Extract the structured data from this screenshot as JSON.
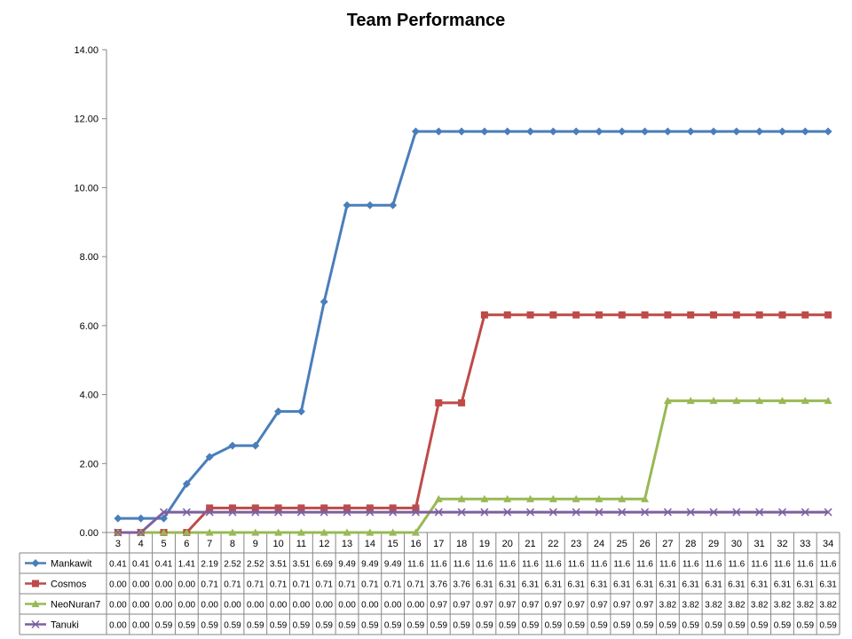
{
  "chart_data": {
    "type": "line",
    "title": "Team Performance",
    "categories": [
      "3",
      "4",
      "5",
      "6",
      "7",
      "8",
      "9",
      "10",
      "11",
      "12",
      "13",
      "14",
      "15",
      "16",
      "17",
      "18",
      "19",
      "20",
      "21",
      "22",
      "23",
      "24",
      "25",
      "26",
      "27",
      "28",
      "29",
      "30",
      "31",
      "32",
      "33",
      "34"
    ],
    "ylim": [
      0,
      14
    ],
    "yticks": [
      "0.00",
      "2.00",
      "4.00",
      "6.00",
      "8.00",
      "10.00",
      "12.00",
      "14.00"
    ],
    "grid": false,
    "legend": "data-table",
    "series": [
      {
        "name": "Mankawit",
        "color": "#4a7ebb",
        "marker": "diamond",
        "values": [
          0.41,
          0.41,
          0.41,
          1.41,
          2.19,
          2.52,
          2.52,
          3.51,
          3.51,
          6.69,
          9.49,
          9.49,
          9.49,
          11.63,
          11.63,
          11.63,
          11.63,
          11.63,
          11.63,
          11.63,
          11.63,
          11.63,
          11.63,
          11.63,
          11.63,
          11.63,
          11.63,
          11.63,
          11.63,
          11.63,
          11.63,
          11.63
        ],
        "labels": [
          "0.41",
          "0.41",
          "0.41",
          "1.41",
          "2.19",
          "2.52",
          "2.52",
          "3.51",
          "3.51",
          "6.69",
          "9.49",
          "9.49",
          "9.49",
          "11.6",
          "11.6",
          "11.6",
          "11.6",
          "11.6",
          "11.6",
          "11.6",
          "11.6",
          "11.6",
          "11.6",
          "11.6",
          "11.6",
          "11.6",
          "11.6",
          "11.6",
          "11.6",
          "11.6",
          "11.6",
          "11.6"
        ]
      },
      {
        "name": "Cosmos",
        "color": "#be4b48",
        "marker": "square",
        "values": [
          0,
          0,
          0,
          0,
          0.71,
          0.71,
          0.71,
          0.71,
          0.71,
          0.71,
          0.71,
          0.71,
          0.71,
          0.71,
          3.76,
          3.76,
          6.31,
          6.31,
          6.31,
          6.31,
          6.31,
          6.31,
          6.31,
          6.31,
          6.31,
          6.31,
          6.31,
          6.31,
          6.31,
          6.31,
          6.31,
          6.31
        ],
        "labels": [
          "0.00",
          "0.00",
          "0.00",
          "0.00",
          "0.71",
          "0.71",
          "0.71",
          "0.71",
          "0.71",
          "0.71",
          "0.71",
          "0.71",
          "0.71",
          "0.71",
          "3.76",
          "3.76",
          "6.31",
          "6.31",
          "6.31",
          "6.31",
          "6.31",
          "6.31",
          "6.31",
          "6.31",
          "6.31",
          "6.31",
          "6.31",
          "6.31",
          "6.31",
          "6.31",
          "6.31",
          "6.31"
        ]
      },
      {
        "name": "NeoNuran7",
        "color": "#98b954",
        "marker": "triangle",
        "values": [
          0,
          0,
          0,
          0,
          0,
          0,
          0,
          0,
          0,
          0,
          0,
          0,
          0,
          0,
          0.97,
          0.97,
          0.97,
          0.97,
          0.97,
          0.97,
          0.97,
          0.97,
          0.97,
          0.97,
          3.82,
          3.82,
          3.82,
          3.82,
          3.82,
          3.82,
          3.82,
          3.82
        ],
        "labels": [
          "0.00",
          "0.00",
          "0.00",
          "0.00",
          "0.00",
          "0.00",
          "0.00",
          "0.00",
          "0.00",
          "0.00",
          "0.00",
          "0.00",
          "0.00",
          "0.00",
          "0.97",
          "0.97",
          "0.97",
          "0.97",
          "0.97",
          "0.97",
          "0.97",
          "0.97",
          "0.97",
          "0.97",
          "3.82",
          "3.82",
          "3.82",
          "3.82",
          "3.82",
          "3.82",
          "3.82",
          "3.82"
        ]
      },
      {
        "name": "Tanuki",
        "color": "#7d5fa0",
        "marker": "x",
        "values": [
          0,
          0,
          0.59,
          0.59,
          0.59,
          0.59,
          0.59,
          0.59,
          0.59,
          0.59,
          0.59,
          0.59,
          0.59,
          0.59,
          0.59,
          0.59,
          0.59,
          0.59,
          0.59,
          0.59,
          0.59,
          0.59,
          0.59,
          0.59,
          0.59,
          0.59,
          0.59,
          0.59,
          0.59,
          0.59,
          0.59,
          0.59
        ],
        "labels": [
          "0.00",
          "0.00",
          "0.59",
          "0.59",
          "0.59",
          "0.59",
          "0.59",
          "0.59",
          "0.59",
          "0.59",
          "0.59",
          "0.59",
          "0.59",
          "0.59",
          "0.59",
          "0.59",
          "0.59",
          "0.59",
          "0.59",
          "0.59",
          "0.59",
          "0.59",
          "0.59",
          "0.59",
          "0.59",
          "0.59",
          "0.59",
          "0.59",
          "0.59",
          "0.59",
          "0.59",
          "0.59"
        ]
      }
    ]
  }
}
